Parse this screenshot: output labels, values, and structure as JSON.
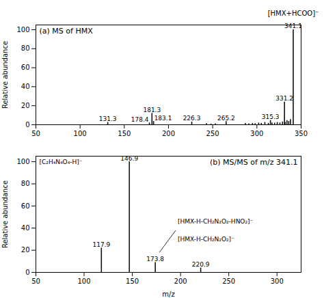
{
  "chart_data": [
    {
      "type": "bar",
      "title": "(a) MS of HMX",
      "x": [
        131.3,
        178.4,
        181.3,
        183.1,
        226.3,
        265.2,
        315.3,
        331.2,
        341.1,
        287,
        291,
        295,
        298,
        302,
        305,
        309,
        313,
        317,
        320,
        323,
        326,
        329,
        332,
        334,
        336,
        338,
        243,
        248,
        253
      ],
      "values": [
        2.5,
        2.0,
        12.0,
        3.5,
        3.0,
        3.5,
        4.5,
        24.0,
        100.0,
        1.5,
        1.0,
        1.5,
        1.2,
        2.0,
        1.5,
        2.5,
        1.5,
        2.0,
        1.8,
        2.5,
        2.0,
        3.0,
        2.5,
        4.5,
        3.5,
        5.5,
        1.2,
        0.8,
        1.0
      ],
      "labels": [
        "131.3",
        "178.4",
        "181.3",
        "183.1",
        "226.3",
        "265.2",
        "315.3",
        "331.2",
        "341.1",
        null,
        null,
        null,
        null,
        null,
        null,
        null,
        null,
        null,
        null,
        null,
        null,
        null,
        null,
        null,
        null,
        null,
        null,
        null,
        null
      ],
      "color": "#111111",
      "xlim": [
        50,
        350
      ],
      "xticks": [
        50,
        100,
        150,
        200,
        250,
        300,
        350
      ],
      "ylim": [
        0,
        105
      ],
      "yticks": [
        0,
        20,
        40,
        60,
        80,
        100
      ],
      "ylabel": "Relative abundance",
      "annotations": [
        {
          "text": "[HMX+HCOO]⁻",
          "x": 341.1
        }
      ]
    },
    {
      "type": "bar",
      "title": "(b) MS/MS of m/z 341.1",
      "x": [
        117.9,
        146.9,
        173.8,
        220.9
      ],
      "values": [
        22.0,
        100.0,
        9.0,
        4.0
      ],
      "labels": [
        "117.9",
        "146.9",
        "173.8",
        "220.9"
      ],
      "color": "#111111",
      "xlim": [
        50,
        325
      ],
      "xticks": [
        50,
        100,
        150,
        200,
        250,
        300
      ],
      "ylim": [
        0,
        105
      ],
      "yticks": [
        0,
        20,
        40,
        60,
        80,
        100
      ],
      "xlabel": "m/z",
      "ylabel": "Relative abundance",
      "annotations": [
        {
          "text": "[C₂H₄N₄O₄-H]⁻"
        },
        {
          "text": "[HMX-H-CH₂N₂O₂-HNO₂]⁻",
          "x": 197,
          "y": 46
        },
        {
          "text": "[HMX-H-CH₂N₂O₂]⁻",
          "x": 197,
          "y": 30
        }
      ],
      "pointer": {
        "x1": 178,
        "y1": 18,
        "x2": 195,
        "y2": 38
      }
    }
  ]
}
